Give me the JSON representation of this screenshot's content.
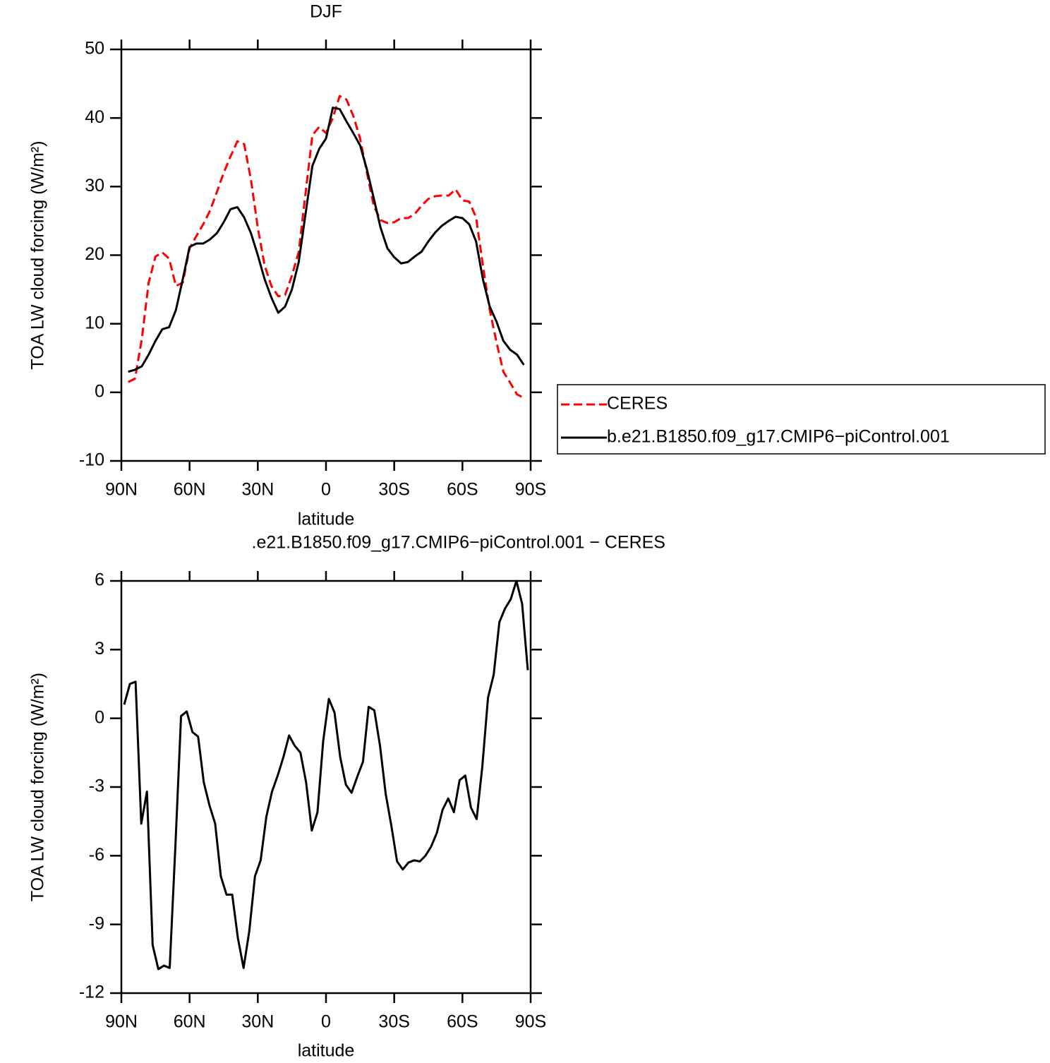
{
  "chart_data": [
    {
      "type": "line",
      "title": "DJF",
      "xlabel": "latitude",
      "ylabel": "TOA LW cloud forcing (W/m²)",
      "x": [
        87,
        84,
        81,
        78,
        75,
        72,
        69,
        66,
        63,
        60,
        57,
        54,
        51,
        48,
        45,
        42,
        39,
        36,
        33,
        30,
        27,
        24,
        21,
        18,
        15,
        12,
        9,
        6,
        3,
        0,
        -3,
        -6,
        -9,
        -12,
        -15,
        -18,
        -21,
        -24,
        -27,
        -30,
        -33,
        -36,
        -39,
        -42,
        -45,
        -48,
        -51,
        -54,
        -57,
        -60,
        -63,
        -66,
        -69,
        -72,
        -75,
        -78,
        -81,
        -84,
        -87
      ],
      "series": [
        {
          "name": "CERES",
          "color": "#ff0000",
          "linestyle": "dashed",
          "values": [
            1.5,
            2.0,
            7.8,
            16,
            19.8,
            20.4,
            19.5,
            15.5,
            16,
            21,
            22.8,
            24.5,
            26.5,
            29.2,
            32,
            34.4,
            36.6,
            36.2,
            31,
            24,
            18.5,
            15.5,
            14,
            14.2,
            17,
            20.5,
            29,
            37.5,
            38.7,
            37.8,
            40,
            43.2,
            42.7,
            40.3,
            37,
            32,
            27.2,
            25.1,
            24.7,
            24.8,
            25.4,
            25.4,
            26,
            27.2,
            28.2,
            28.6,
            28.7,
            28.7,
            29.6,
            28,
            27.8,
            25.5,
            18.5,
            12,
            7.3,
            3,
            1.4,
            -0.3,
            -0.8
          ]
        },
        {
          "name": "b.e21.B1850.f09_g17.CMIP6−piControl.001",
          "color": "#000000",
          "linestyle": "solid",
          "values": [
            3.0,
            3.3,
            3.8,
            5.5,
            7.5,
            9.2,
            9.5,
            12,
            16.5,
            21.2,
            21.7,
            21.7,
            22.3,
            23.2,
            24.8,
            26.7,
            27.0,
            25.5,
            23.2,
            20,
            16.5,
            13.8,
            11.6,
            12.5,
            15,
            19,
            26,
            33,
            35.5,
            37,
            41.5,
            41.3,
            39.5,
            37.8,
            36,
            32.5,
            28.3,
            24,
            21,
            19.7,
            18.8,
            19,
            19.8,
            20.5,
            22,
            23.3,
            24.3,
            25,
            25.6,
            25.4,
            24.5,
            22,
            16.5,
            12.5,
            10.3,
            7.5,
            6.2,
            5.5,
            4
          ]
        }
      ],
      "xlim": [
        90,
        -90
      ],
      "xticks": [
        {
          "value": 90,
          "label": "90N"
        },
        {
          "value": 60,
          "label": "60N"
        },
        {
          "value": 30,
          "label": "30N"
        },
        0,
        {
          "value": -30,
          "label": "30S"
        },
        {
          "value": -60,
          "label": "60S"
        },
        {
          "value": -90,
          "label": "90S"
        }
      ],
      "ylim": [
        -10,
        50
      ],
      "yticks": [
        -10,
        0,
        10,
        20,
        30,
        40,
        50
      ],
      "legend": "right"
    },
    {
      "type": "line",
      "title": ".e21.B1850.f09_g17.CMIP6−piControl.001  − CERES",
      "xlabel": "latitude",
      "ylabel": "TOA LW cloud forcing (W/m²)",
      "x": [
        88.75,
        86.25,
        83.75,
        81.25,
        78.75,
        76.25,
        73.75,
        71.25,
        68.75,
        66.25,
        63.75,
        61.25,
        58.75,
        56.25,
        53.75,
        51.25,
        48.75,
        46.25,
        43.75,
        41.25,
        38.75,
        36.25,
        33.75,
        31.25,
        28.75,
        26.25,
        23.75,
        21.25,
        18.75,
        16.25,
        13.75,
        11.25,
        8.75,
        6.25,
        3.75,
        1.25,
        -1.25,
        -3.75,
        -6.25,
        -8.75,
        -11.25,
        -13.75,
        -16.25,
        -18.75,
        -21.25,
        -23.75,
        -26.25,
        -28.75,
        -31.25,
        -33.75,
        -36.25,
        -38.75,
        -41.25,
        -43.75,
        -46.25,
        -48.75,
        -51.25,
        -53.75,
        -56.25,
        -58.75,
        -61.25,
        -63.75,
        -66.25,
        -68.75,
        -71.25,
        -73.75,
        -76.25,
        -78.75,
        -81.25,
        -83.75,
        -86.25,
        -88.75
      ],
      "series": [
        {
          "color": "#000000",
          "linestyle": "solid",
          "values": [
            0.6,
            1.5,
            1.6,
            -4.6,
            -3.2,
            -9.9,
            -10.95,
            -10.8,
            -10.9,
            -5.6,
            0.1,
            0.3,
            -0.6,
            -0.8,
            -2.8,
            -3.8,
            -4.6,
            -6.9,
            -7.7,
            -7.7,
            -9.6,
            -10.9,
            -9.3,
            -6.9,
            -6.2,
            -4.3,
            -3.2,
            -2.5,
            -1.7,
            -0.75,
            -1.2,
            -1.5,
            -2.8,
            -4.9,
            -4.1,
            -1.0,
            0.85,
            0.25,
            -1.7,
            -2.9,
            -3.25,
            -2.55,
            -1.9,
            0.5,
            0.35,
            -1.2,
            -3.3,
            -4.7,
            -6.25,
            -6.6,
            -6.3,
            -6.2,
            -6.25,
            -6.0,
            -5.6,
            -5.0,
            -4.0,
            -3.5,
            -4.1,
            -2.7,
            -2.5,
            -3.9,
            -4.4,
            -2.1,
            0.9,
            1.9,
            4.2,
            4.8,
            5.2,
            6.0,
            5.0,
            2.1
          ]
        }
      ],
      "xlim": [
        90,
        -90
      ],
      "xticks": [
        {
          "value": 90,
          "label": "90N"
        },
        {
          "value": 60,
          "label": "60N"
        },
        {
          "value": 30,
          "label": "30N"
        },
        0,
        {
          "value": -30,
          "label": "30S"
        },
        {
          "value": -60,
          "label": "60S"
        },
        {
          "value": -90,
          "label": "90S"
        }
      ],
      "ylim": [
        -12,
        6
      ],
      "yticks": [
        -12,
        -9,
        -6,
        -3,
        0,
        3,
        6
      ]
    }
  ]
}
